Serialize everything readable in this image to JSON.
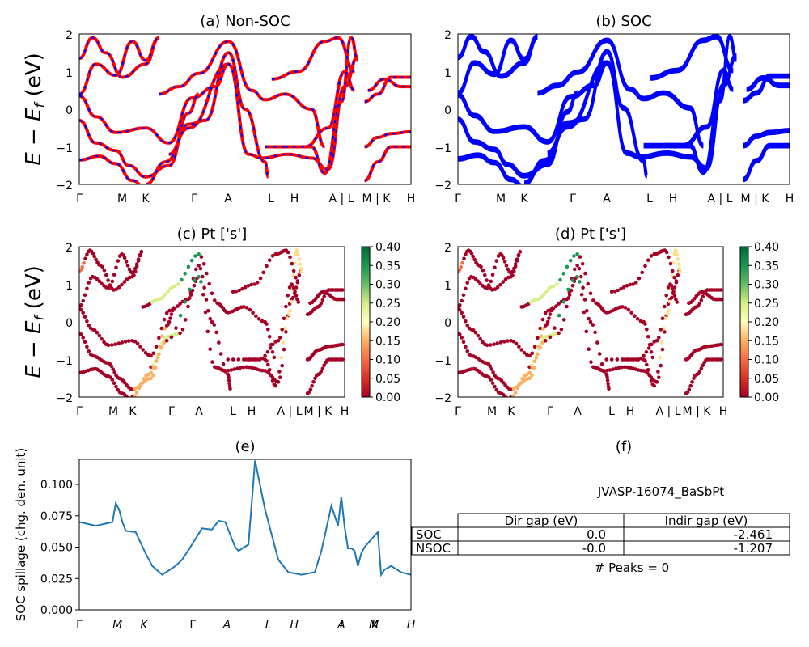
{
  "band_plots": [
    {
      "id": "a",
      "title": "(a) Non-SOC"
    },
    {
      "id": "b",
      "title": "(b) SOC"
    },
    {
      "id": "c",
      "title": "(c)  Pt ['s']"
    },
    {
      "id": "d",
      "title": "(d) Pt ['s']"
    }
  ],
  "band_ylabel": "E − E_f (eV)",
  "band_kpath": [
    "Γ",
    "M",
    "K",
    "Γ",
    "A",
    "L",
    "H",
    "A | L",
    "M | K",
    "H"
  ],
  "band_yticks": [
    "−2",
    "−1",
    "0",
    "1",
    "2"
  ],
  "colorbar_ticks": [
    "0.00",
    "0.05",
    "0.10",
    "0.15",
    "0.20",
    "0.25",
    "0.30",
    "0.35",
    "0.40"
  ],
  "colors": {
    "nonsoc_line": "#ff0000",
    "nonsoc_dash": "#0000ff",
    "soc_line": "#0000ff",
    "spillage_line": "#1f77b4"
  },
  "panel_e": {
    "title": "(e)",
    "ylabel": "SOC spillage (chg. den. unit)"
  },
  "panel_f": {
    "title": "(f)",
    "material": "JVASP-16074_BaSbPt",
    "col_headers": [
      "Dir gap (eV)",
      "Indir gap (eV)"
    ],
    "rows": [
      {
        "label": "SOC",
        "dir": "0.0",
        "indir": "-2.461"
      },
      {
        "label": "NSOC",
        "dir": "-0.0",
        "indir": "-1.207"
      }
    ],
    "peaks": "# Peaks = 0"
  },
  "chart_data": [
    {
      "type": "line",
      "panel": "a",
      "title": "(a) Non-SOC",
      "ylabel": "E − E_f (eV)",
      "ylim": [
        -2,
        2
      ],
      "x_ticks": [
        "Γ",
        "M",
        "K",
        "Γ",
        "A",
        "L",
        "H",
        "A | L",
        "M | K",
        "H"
      ],
      "note": "band structure, red solid with blue dashed overlay"
    },
    {
      "type": "line",
      "panel": "b",
      "title": "(b) SOC",
      "ylim": [
        -2,
        2
      ],
      "x_ticks": [
        "Γ",
        "M",
        "K",
        "Γ",
        "A",
        "L",
        "H",
        "A | L",
        "M | K",
        "H"
      ]
    },
    {
      "type": "scatter",
      "panel": "c",
      "title": "(c)  Pt ['s']",
      "ylabel": "E − E_f (eV)",
      "ylim": [
        -2,
        2
      ],
      "colorbar": [
        0.0,
        0.4
      ],
      "colormap": "RdYlGn"
    },
    {
      "type": "scatter",
      "panel": "d",
      "title": "(d) Pt ['s']",
      "ylim": [
        -2,
        2
      ],
      "colorbar": [
        0.0,
        0.4
      ],
      "colormap": "RdYlGn"
    },
    {
      "type": "line",
      "panel": "e",
      "title": "(e)",
      "ylabel": "SOC spillage (chg. den. unit)",
      "ylim": [
        0,
        0.12
      ],
      "yticks": [
        "0.000",
        "0.025",
        "0.050",
        "0.075",
        "0.100"
      ],
      "x_ticks": [
        "Γ",
        "M",
        "K",
        "Γ",
        "A",
        "L",
        "H",
        "A",
        "L",
        "M",
        "K",
        "H"
      ],
      "x": [
        0,
        0.05,
        0.1,
        0.11,
        0.12,
        0.13,
        0.14,
        0.17,
        0.2,
        0.21,
        0.22,
        0.25,
        0.29,
        0.31,
        0.33,
        0.37,
        0.4,
        0.42,
        0.44,
        0.47,
        0.48,
        0.51,
        0.53,
        0.56,
        0.58,
        0.6,
        0.63,
        0.67,
        0.71,
        0.73,
        0.76,
        0.78,
        0.79,
        0.8,
        0.81,
        0.82,
        0.83,
        0.84,
        0.85,
        0.86,
        0.9,
        0.91,
        0.92,
        0.94,
        0.97,
        1.0
      ],
      "y": [
        0.07,
        0.067,
        0.07,
        0.085,
        0.08,
        0.07,
        0.063,
        0.062,
        0.045,
        0.04,
        0.035,
        0.028,
        0.035,
        0.04,
        0.048,
        0.065,
        0.064,
        0.071,
        0.07,
        0.05,
        0.047,
        0.052,
        0.119,
        0.08,
        0.06,
        0.04,
        0.03,
        0.028,
        0.03,
        0.047,
        0.083,
        0.067,
        0.09,
        0.066,
        0.049,
        0.049,
        0.047,
        0.035,
        0.045,
        0.05,
        0.062,
        0.028,
        0.032,
        0.035,
        0.03,
        0.028
      ]
    }
  ]
}
